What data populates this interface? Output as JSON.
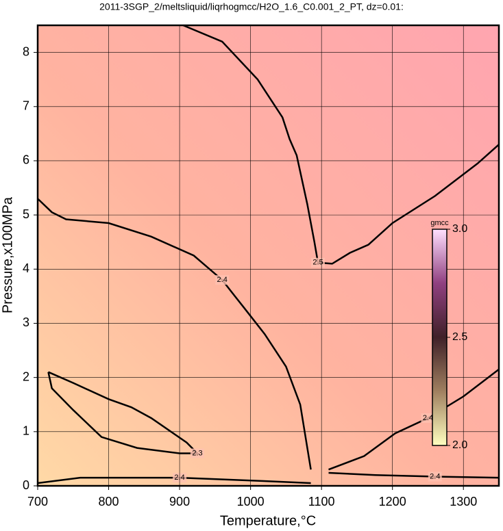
{
  "chart_data": {
    "type": "contour",
    "title": "2011-3SGP_2/meltsliquid/liqrhogmcc/H2O_1.6_C0.001_2_PT, dz=0.01:",
    "x_label": "Temperature,°C",
    "y_label": "Pressure,x100MPa",
    "xlim": [
      700,
      1350
    ],
    "ylim": [
      0,
      8.5
    ],
    "xticks": [
      700,
      800,
      900,
      1000,
      1100,
      1200,
      1300
    ],
    "yticks": [
      0,
      1,
      2,
      3,
      4,
      5,
      6,
      7,
      8
    ],
    "grid": true,
    "contours": [
      {
        "level": 2.5,
        "x": [
          905,
          960,
          1010,
          1045,
          1055,
          1065,
          1080,
          1090,
          1095,
          1115,
          1140,
          1166,
          1200,
          1260,
          1320,
          1350
        ],
        "y": [
          8.5,
          8.2,
          7.5,
          6.8,
          6.4,
          6.1,
          5.2,
          4.5,
          4.12,
          4.1,
          4.3,
          4.45,
          4.85,
          5.35,
          5.95,
          6.3
        ]
      },
      {
        "level": 2.4,
        "x": [
          700,
          720,
          740,
          800,
          860,
          920,
          960,
          978,
          990,
          1020,
          1050,
          1070,
          1085
        ],
        "y": [
          5.3,
          5.05,
          4.92,
          4.85,
          4.6,
          4.25,
          3.8,
          3.5,
          3.3,
          2.8,
          2.2,
          1.5,
          0.3
        ]
      },
      {
        "level": 2.4,
        "x": [
          1110,
          1160,
          1204,
          1250,
          1300,
          1350
        ],
        "y": [
          0.3,
          0.55,
          0.97,
          1.25,
          1.65,
          2.15
        ]
      },
      {
        "level": 2.3,
        "x": [
          715,
          720,
          750,
          790,
          840,
          900,
          925,
          910,
          860,
          832,
          800,
          750,
          715
        ],
        "y": [
          2.1,
          1.8,
          1.4,
          0.9,
          0.7,
          0.6,
          0.6,
          0.8,
          1.25,
          1.45,
          1.6,
          1.9,
          2.1
        ]
      },
      {
        "level": 2.4,
        "x": [
          700,
          760,
          900,
          1016,
          1085
        ],
        "y": [
          0.05,
          0.15,
          0.15,
          0.09,
          0.05
        ]
      },
      {
        "level": 2.4,
        "x": [
          1110,
          1176,
          1260,
          1350
        ],
        "y": [
          0.24,
          0.2,
          0.17,
          0.15
        ]
      }
    ],
    "colorbar": {
      "label": "gmcc",
      "lim": [
        2.0,
        3.0
      ],
      "ticks": [
        {
          "value": 2,
          "label": "2.0"
        },
        {
          "value": 2.5,
          "label": "2.5"
        },
        {
          "value": 3,
          "label": "3.0"
        }
      ],
      "colors": [
        "#ffffc0",
        "#a08060",
        "#402028",
        "#904080",
        "#ffe0ff"
      ]
    }
  }
}
